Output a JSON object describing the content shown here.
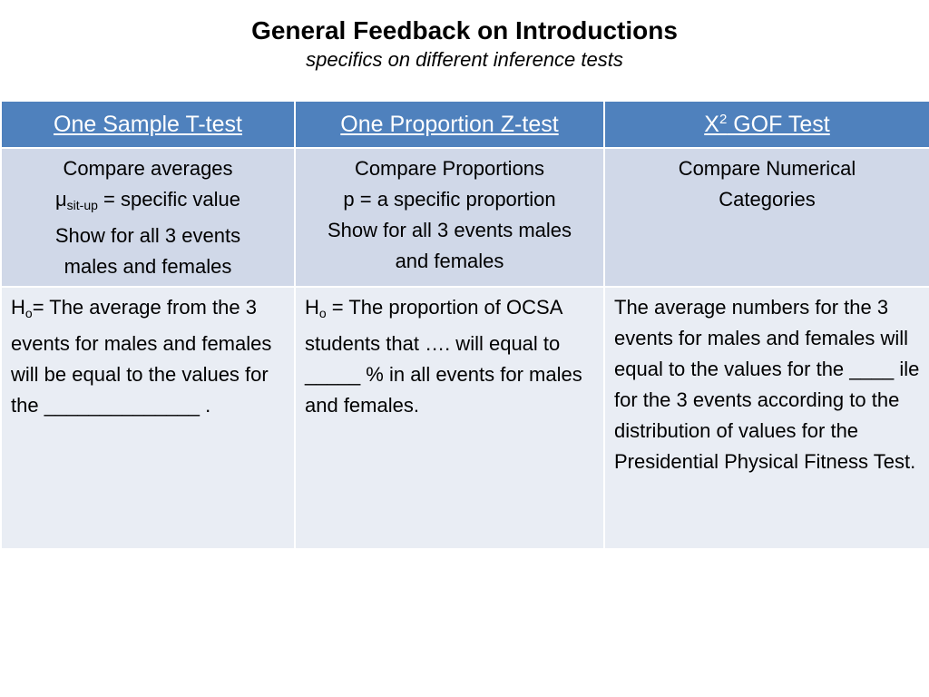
{
  "title": "General Feedback on Introductions",
  "subtitle": "specifics on different inference tests",
  "headers": {
    "col1": "One Sample T-test",
    "col2": "One Proportion Z-test",
    "col3_base": "X",
    "col3_sup": "2",
    "col3_rest": " GOF Test"
  },
  "row1": {
    "col1": {
      "line1": "Compare averages",
      "mu": "μ",
      "mu_sub": "sit-up",
      "mu_rest": " = specific value",
      "line3": "Show for all 3 events",
      "line4": "males and females"
    },
    "col2": {
      "line1": "Compare Proportions",
      "line2": "p = a specific proportion",
      "line3": "Show for all 3 events males",
      "line4": "and females"
    },
    "col3": {
      "line1": "Compare Numerical",
      "line2": "Categories"
    }
  },
  "row2": {
    "col1": {
      "h": "H",
      "h_sub": "o",
      "text": "= The average from the 3 events for males and females will be equal to the values for the ______________ ."
    },
    "col2": {
      "h": "H",
      "h_sub": "o",
      "text": " = The proportion  of OCSA students that …. will equal to _____ % in all events for males and females."
    },
    "col3": {
      "text": "The average numbers for the 3 events for males and females will equal to the values for the ____ ile for the 3 events according to the distribution of values for the Presidential Physical Fitness Test."
    }
  }
}
